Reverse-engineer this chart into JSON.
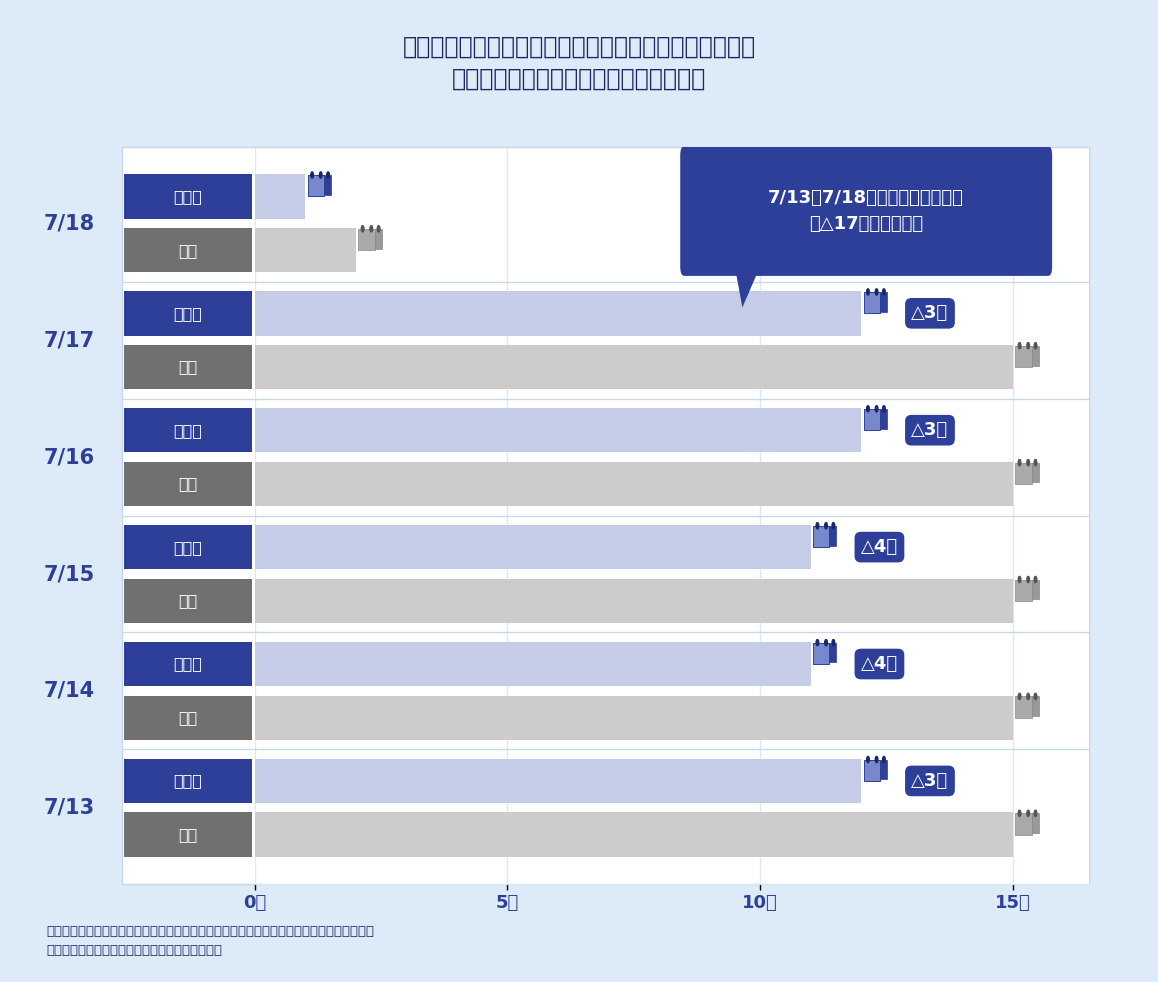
{
  "title_line1": "配送先をキーに各ドライバーの乗務割りを作成すると、",
  "title_line2": "現状よりもトラックの台数削減が可能。",
  "bg_color": "#ddeaf7",
  "chart_bg": "#ffffff",
  "dates": [
    "7/18",
    "7/17",
    "7/16",
    "7/15",
    "7/14",
    "7/13"
  ],
  "genjou_values": [
    2,
    15,
    15,
    15,
    15,
    15
  ],
  "saitekika_values": [
    1,
    12,
    12,
    11,
    11,
    12
  ],
  "reductions": [
    null,
    "△3台",
    "△3台",
    "△4台",
    "△4台",
    "△3台"
  ],
  "axis_max": 16.5,
  "xticks": [
    0,
    5,
    10,
    15
  ],
  "xlabel_suffix": "台",
  "bar_height": 0.38,
  "genjou_bar_color": "#cccccc",
  "saitekika_bar_color": "#c5cce8",
  "label_bg_genjou": "#707070",
  "label_bg_saitekika": "#2d3f99",
  "label_text_color": "#ffffff",
  "reduction_bg": "#2d3f99",
  "reduction_text_color": "#ffffff",
  "callout_bg": "#2d3f99",
  "callout_text": "7/13～7/18のサンプル抜出で、\n延△17台／週の削減",
  "callout_text_color": "#ffffff",
  "footnote_line1": "前提１：配送先の担当を考慮せずに割付。　前提２：配送日の変更（持越し）は認めない。",
  "footnote_line2": "前提３：台数が最小限で配送できるように試算。",
  "date_label_color": "#2d3f99",
  "genjou_label": "現状",
  "saitekika_label": "最適化",
  "row_sep_color": "#c8d8ec",
  "grid_color": "#dce8f5",
  "label_col_color_genjou": "#707070",
  "label_col_color_saitekika": "#2d3f99"
}
